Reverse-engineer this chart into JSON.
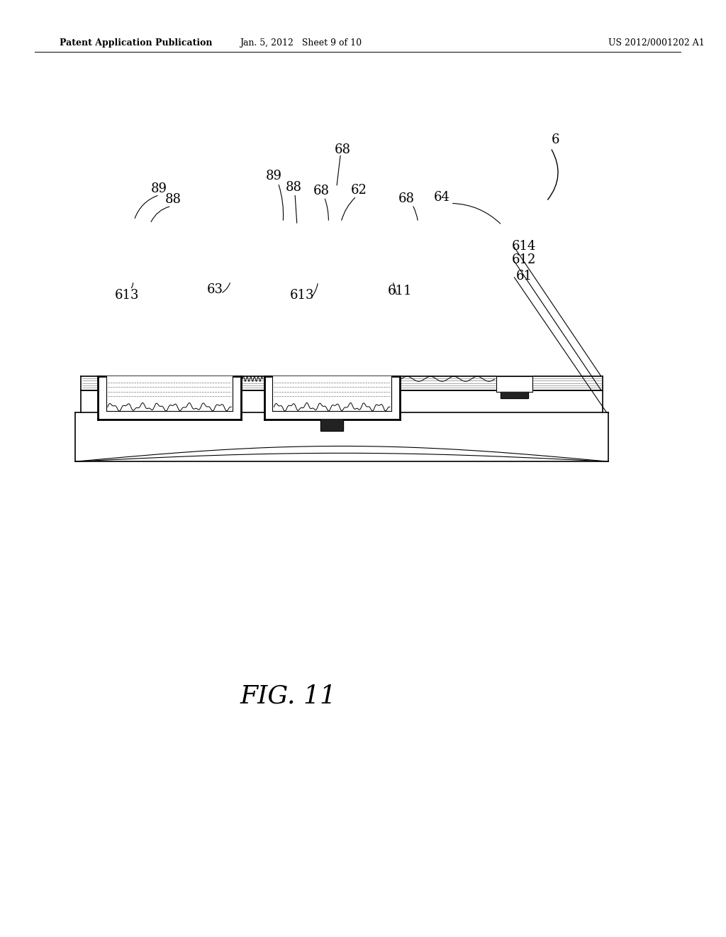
{
  "bg_color": "#ffffff",
  "header_left": "Patent Application Publication",
  "header_mid": "Jan. 5, 2012   Sheet 9 of 10",
  "header_right": "US 2012/0001202 A1",
  "fig_label": "FIG. 11",
  "label_fs": 13,
  "black": "#000000"
}
